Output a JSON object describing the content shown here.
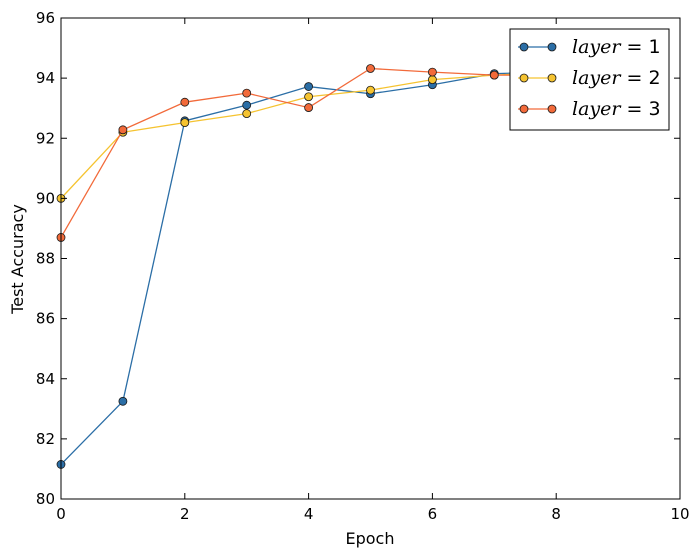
{
  "chart_data": {
    "type": "line",
    "xlabel": "Epoch",
    "ylabel": "Test Accuracy",
    "xlim": [
      0,
      10
    ],
    "ylim": [
      80,
      96
    ],
    "xticks": [
      "0",
      "2",
      "4",
      "6",
      "8",
      "10"
    ],
    "yticks": [
      "80",
      "82",
      "84",
      "86",
      "88",
      "90",
      "92",
      "94",
      "96"
    ],
    "grid": false,
    "legend_position": "top-right",
    "series": [
      {
        "name": "layer = 1",
        "legend_var": "layer",
        "legend_value": "= 1",
        "color": "#2b6ea6",
        "x": [
          0,
          1,
          2,
          3,
          4,
          5,
          6,
          7,
          8
        ],
        "y": [
          81.15,
          83.25,
          92.58,
          93.1,
          93.72,
          93.48,
          93.78,
          94.15,
          94.2
        ]
      },
      {
        "name": "layer = 2",
        "legend_var": "layer",
        "legend_value": "= 2",
        "color": "#f5c330",
        "x": [
          0,
          1,
          2,
          3,
          4,
          5,
          6,
          7,
          8
        ],
        "y": [
          90.0,
          92.2,
          92.52,
          92.82,
          93.38,
          93.6,
          93.95,
          94.1,
          94.2
        ]
      },
      {
        "name": "layer = 3",
        "legend_var": "layer",
        "legend_value": "= 3",
        "color": "#f26a3a",
        "x": [
          0,
          1,
          2,
          3,
          4,
          5,
          6,
          7,
          8
        ],
        "y": [
          88.7,
          92.28,
          93.2,
          93.5,
          93.02,
          94.32,
          94.2,
          94.1,
          94.1
        ]
      }
    ]
  }
}
